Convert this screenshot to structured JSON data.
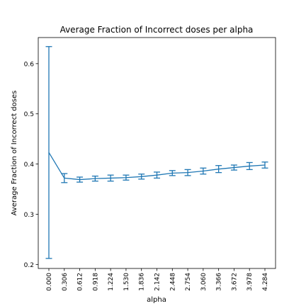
{
  "chart_data": {
    "type": "line",
    "title": "Average Fraction of Incorrect doses per alpha",
    "xlabel": "alpha",
    "ylabel": "Average Fraction of Incorrect doses",
    "x": [
      "0.000",
      "0.306",
      "0.612",
      "0.918",
      "1.224",
      "1.530",
      "1.836",
      "2.142",
      "2.448",
      "2.754",
      "3.060",
      "3.366",
      "3.672",
      "3.978",
      "4.284"
    ],
    "y_ticks": [
      "0.2",
      "0.3",
      "0.4",
      "0.5",
      "0.6"
    ],
    "ylim": [
      0.192,
      0.652
    ],
    "grid": false,
    "series": [
      {
        "values": [
          0.423,
          0.372,
          0.369,
          0.371,
          0.372,
          0.373,
          0.375,
          0.378,
          0.382,
          0.383,
          0.386,
          0.39,
          0.393,
          0.396,
          0.398
        ],
        "errors": [
          0.211,
          0.009,
          0.005,
          0.005,
          0.006,
          0.005,
          0.005,
          0.006,
          0.005,
          0.006,
          0.006,
          0.007,
          0.005,
          0.007,
          0.006
        ],
        "color": "#1f77b4"
      }
    ]
  }
}
